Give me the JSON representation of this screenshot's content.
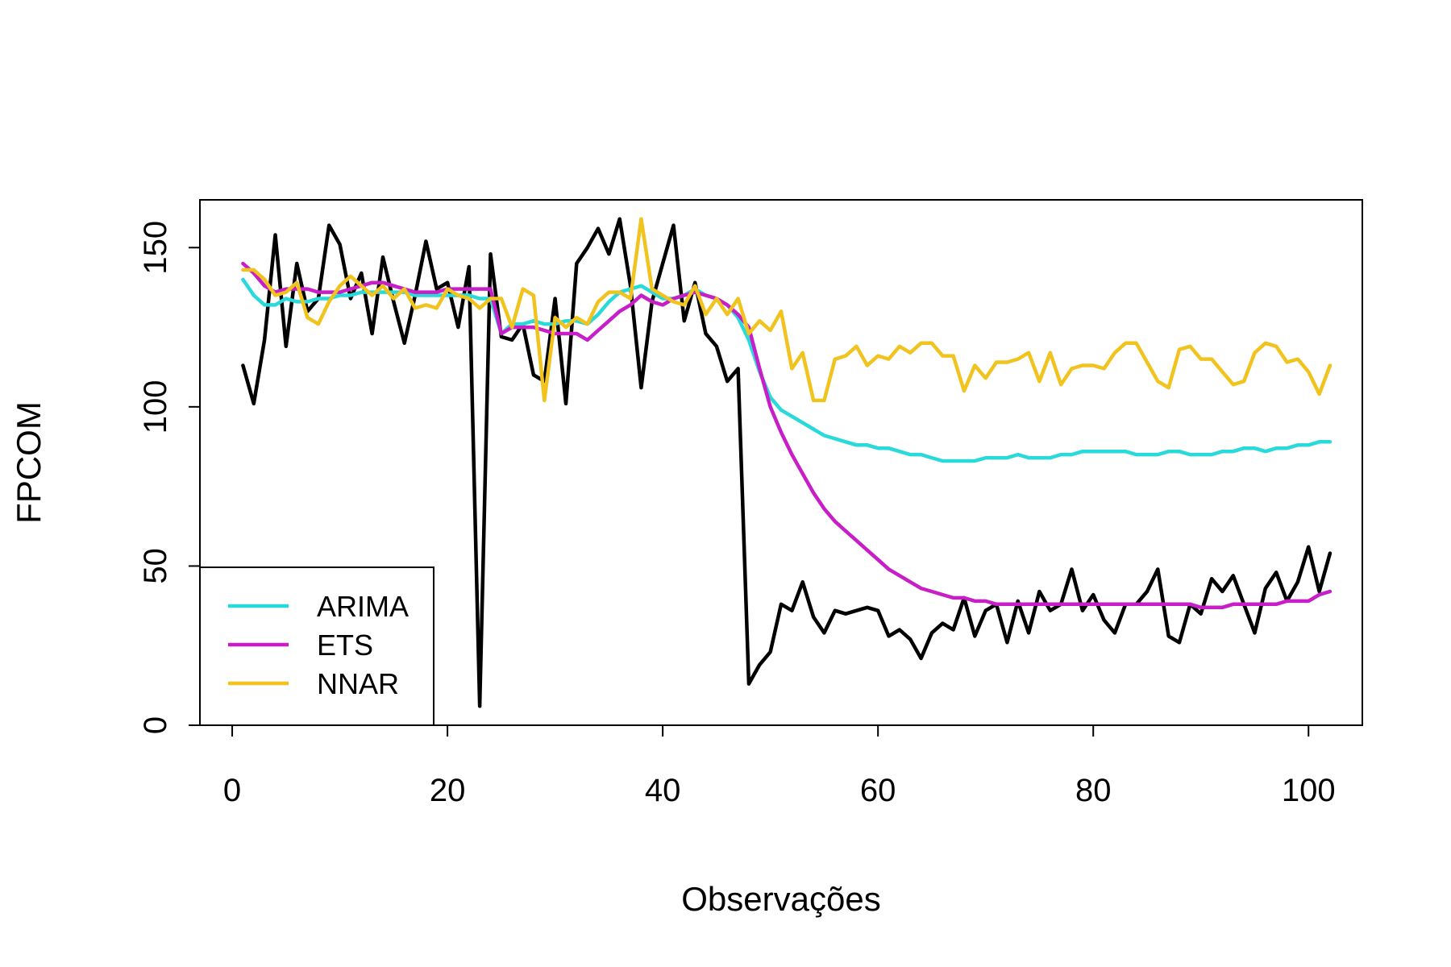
{
  "chart_data": {
    "type": "line",
    "xlabel": "Observações",
    "ylabel": "FPCOM",
    "xlim": [
      -3,
      105
    ],
    "ylim": [
      0,
      165
    ],
    "xticks": [
      0,
      20,
      40,
      60,
      80,
      100
    ],
    "yticks": [
      0,
      50,
      100,
      150
    ],
    "grid": false,
    "legend_position": "bottom-left",
    "x": [
      1,
      2,
      3,
      4,
      5,
      6,
      7,
      8,
      9,
      10,
      11,
      12,
      13,
      14,
      15,
      16,
      17,
      18,
      19,
      20,
      21,
      22,
      23,
      24,
      25,
      26,
      27,
      28,
      29,
      30,
      31,
      32,
      33,
      34,
      35,
      36,
      37,
      38,
      39,
      40,
      41,
      42,
      43,
      44,
      45,
      46,
      47,
      48,
      49,
      50,
      51,
      52,
      53,
      54,
      55,
      56,
      57,
      58,
      59,
      60,
      61,
      62,
      63,
      64,
      65,
      66,
      67,
      68,
      69,
      70,
      71,
      72,
      73,
      74,
      75,
      76,
      77,
      78,
      79,
      80,
      81,
      82,
      83,
      84,
      85,
      86,
      87,
      88,
      89,
      90,
      91,
      92,
      93,
      94,
      95,
      96,
      97,
      98,
      99,
      100,
      101,
      102
    ],
    "series": [
      {
        "color": "#000000",
        "values": [
          113,
          101,
          121,
          154,
          119,
          145,
          130,
          134,
          157,
          151,
          134,
          142,
          123,
          147,
          133,
          120,
          135,
          152,
          137,
          139,
          125,
          144,
          6,
          148,
          122,
          121,
          126,
          110,
          108,
          134,
          101,
          145,
          150,
          156,
          148,
          159,
          138,
          106,
          133,
          145,
          157,
          127,
          139,
          123,
          119,
          108,
          112,
          13,
          19,
          23,
          38,
          36,
          45,
          34,
          29,
          36,
          35,
          36,
          37,
          36,
          28,
          30,
          27,
          21,
          29,
          32,
          30,
          40,
          28,
          36,
          38,
          26,
          39,
          29,
          42,
          36,
          38,
          49,
          36,
          41,
          33,
          29,
          38,
          38,
          42,
          49,
          28,
          26,
          38,
          35,
          46,
          42,
          47,
          38,
          29,
          43,
          48,
          39,
          45,
          56,
          42,
          54
        ]
      },
      {
        "name": "ARIMA",
        "color": "#2ad9d9",
        "values": [
          140,
          135,
          132,
          132,
          134,
          133,
          133,
          134,
          134,
          135,
          135,
          136,
          136,
          136,
          136,
          136,
          135,
          135,
          135,
          135,
          135,
          135,
          134,
          134,
          123,
          126,
          126,
          127,
          126,
          126,
          127,
          127,
          126,
          129,
          133,
          136,
          137,
          138,
          136,
          134,
          134,
          135,
          137,
          135,
          134,
          132,
          128,
          121,
          111,
          103,
          99,
          97,
          95,
          93,
          91,
          90,
          89,
          88,
          88,
          87,
          87,
          86,
          85,
          85,
          84,
          83,
          83,
          83,
          83,
          84,
          84,
          84,
          85,
          84,
          84,
          84,
          85,
          85,
          86,
          86,
          86,
          86,
          86,
          85,
          85,
          85,
          86,
          86,
          85,
          85,
          85,
          86,
          86,
          87,
          87,
          86,
          87,
          87,
          88,
          88,
          89,
          89
        ]
      },
      {
        "name": "ETS",
        "color": "#c81ec8",
        "values": [
          145,
          142,
          138,
          136,
          137,
          137,
          137,
          136,
          136,
          136,
          137,
          138,
          139,
          139,
          138,
          137,
          136,
          136,
          136,
          137,
          137,
          137,
          137,
          137,
          123,
          125,
          125,
          125,
          124,
          123,
          123,
          123,
          121,
          124,
          127,
          130,
          132,
          135,
          133,
          132,
          134,
          135,
          136,
          135,
          134,
          132,
          129,
          125,
          112,
          100,
          92,
          85,
          79,
          73,
          68,
          64,
          61,
          58,
          55,
          52,
          49,
          47,
          45,
          43,
          42,
          41,
          40,
          40,
          39,
          39,
          38,
          38,
          38,
          38,
          38,
          38,
          38,
          38,
          38,
          38,
          38,
          38,
          38,
          38,
          38,
          38,
          38,
          38,
          38,
          37,
          37,
          37,
          38,
          38,
          38,
          38,
          38,
          39,
          39,
          39,
          41,
          42
        ]
      },
      {
        "name": "NNAR",
        "color": "#f0c31e",
        "values": [
          143,
          143,
          140,
          135,
          136,
          139,
          128,
          126,
          133,
          138,
          141,
          138,
          135,
          138,
          134,
          137,
          131,
          132,
          131,
          137,
          135,
          134,
          131,
          134,
          134,
          125,
          137,
          135,
          102,
          128,
          125,
          128,
          126,
          133,
          136,
          136,
          134,
          159,
          137,
          135,
          133,
          132,
          138,
          129,
          134,
          129,
          134,
          123,
          127,
          124,
          130,
          112,
          117,
          102,
          102,
          115,
          116,
          119,
          113,
          116,
          115,
          119,
          117,
          120,
          120,
          116,
          116,
          105,
          113,
          109,
          114,
          114,
          115,
          117,
          108,
          117,
          107,
          112,
          113,
          113,
          112,
          117,
          120,
          120,
          114,
          108,
          106,
          118,
          119,
          115,
          115,
          111,
          107,
          108,
          117,
          120,
          119,
          114,
          115,
          111,
          104,
          113
        ]
      }
    ]
  }
}
